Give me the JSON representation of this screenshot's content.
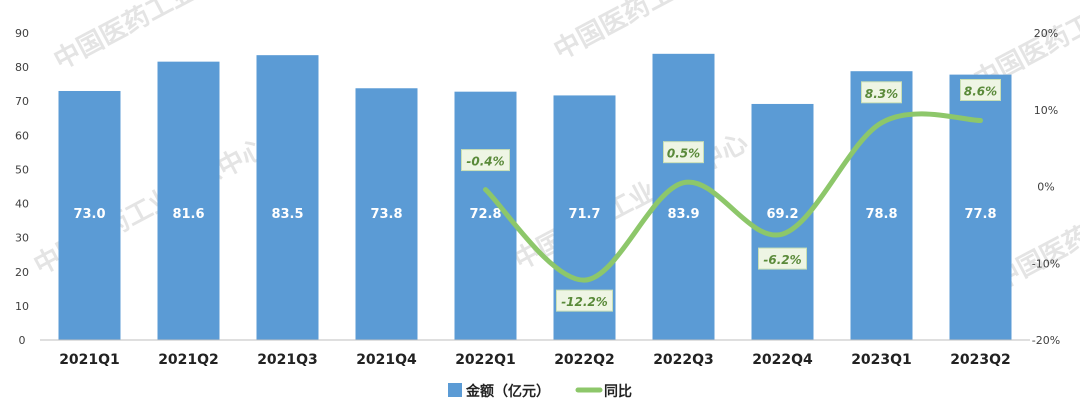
{
  "chart_data": {
    "type": "bar",
    "categories": [
      "2021Q1",
      "2021Q2",
      "2021Q3",
      "2021Q4",
      "2022Q1",
      "2022Q2",
      "2022Q3",
      "2022Q4",
      "2023Q1",
      "2023Q2"
    ],
    "series": [
      {
        "name": "金额（亿元）",
        "type": "bar",
        "axis": "left",
        "color": "#5b9bd5",
        "values": [
          73.0,
          81.6,
          83.5,
          73.8,
          72.8,
          71.7,
          83.9,
          69.2,
          78.8,
          77.8
        ],
        "labels": [
          "73.0",
          "81.6",
          "83.5",
          "73.8",
          "72.8",
          "71.7",
          "83.9",
          "69.2",
          "78.8",
          "77.8"
        ]
      },
      {
        "name": "同比",
        "type": "line",
        "axis": "right",
        "color": "#8dc76a",
        "x": [
          "2022Q1",
          "2022Q2",
          "2022Q3",
          "2022Q4",
          "2023Q1",
          "2023Q2"
        ],
        "values": [
          -0.4,
          -12.2,
          0.5,
          -6.2,
          8.3,
          8.6
        ],
        "labels": [
          "-0.4%",
          "-12.2%",
          "0.5%",
          "-6.2%",
          "8.3%",
          "8.6%"
        ]
      }
    ],
    "y_left": {
      "min": 0,
      "max": 90,
      "step": 10,
      "ticks": [
        "0",
        "10",
        "20",
        "30",
        "40",
        "50",
        "60",
        "70",
        "80",
        "90"
      ]
    },
    "y_right": {
      "min": -20,
      "max": 20,
      "step": 10,
      "ticks": [
        "-20%",
        "-10%",
        "0%",
        "10%",
        "20%"
      ]
    },
    "legend": {
      "position": "bottom",
      "items": [
        "金额（亿元）",
        "同比"
      ]
    },
    "grid": false,
    "watermark": "中国医药工业信息中心 China National Pharmaceutical Industry Information Center"
  }
}
